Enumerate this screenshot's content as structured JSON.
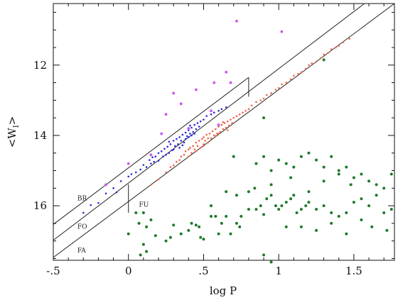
{
  "chart_data": {
    "type": "scatter",
    "title": "",
    "xlabel": "log P",
    "ylabel": "<W",
    "ylabel_subscript": "I",
    "ylabel_close": ">",
    "xlim": [
      -0.5,
      1.77
    ],
    "ylim": [
      17.55,
      10.25
    ],
    "y_inverted": true,
    "grid": false,
    "legend": "none",
    "x_ticks": [
      {
        "value": -0.5,
        "label": "-.5"
      },
      {
        "value": 0,
        "label": "0"
      },
      {
        "value": 0.5,
        "label": ".5"
      },
      {
        "value": 1,
        "label": "1"
      },
      {
        "value": 1.5,
        "label": "1.5"
      }
    ],
    "y_ticks": [
      {
        "value": 12,
        "label": "12"
      },
      {
        "value": 14,
        "label": "14"
      },
      {
        "value": 16,
        "label": "16"
      }
    ],
    "band_labels": [
      {
        "text": "BR",
        "x": -0.34,
        "y": 15.85
      },
      {
        "text": "FO",
        "x": -0.34,
        "y": 16.65
      },
      {
        "text": "FU",
        "x": 0.07,
        "y": 16.03
      },
      {
        "text": "FA",
        "x": -0.34,
        "y": 17.33
      }
    ],
    "boundary_lines": [
      {
        "name": "upper",
        "x": [
          -0.5,
          0.8
        ],
        "y": [
          16.53,
          12.35
        ]
      },
      {
        "name": "middle",
        "x": [
          -0.5,
          1.57
        ],
        "y": [
          16.98,
          10.25
        ]
      },
      {
        "name": "lower",
        "x": [
          -0.5,
          1.77
        ],
        "y": [
          17.47,
          10.25
        ]
      },
      {
        "name": "box-right",
        "x": [
          0.8,
          0.8
        ],
        "y": [
          12.35,
          12.9
        ]
      },
      {
        "name": "box-left",
        "x": [
          0,
          0
        ],
        "y": [
          15.39,
          16.2
        ]
      }
    ],
    "series": [
      {
        "color": "#2b2bd8",
        "marker_size": 1.3,
        "points": [
          [
            -0.25,
            15.98
          ],
          [
            -0.2,
            15.92
          ],
          [
            -0.15,
            15.65
          ],
          [
            -0.1,
            15.5
          ],
          [
            -0.08,
            15.62
          ],
          [
            -0.05,
            15.3
          ],
          [
            0.0,
            15.17
          ],
          [
            0.02,
            15.1
          ],
          [
            0.05,
            15.05
          ],
          [
            0.08,
            14.97
          ],
          [
            0.1,
            14.84
          ],
          [
            0.12,
            14.9
          ],
          [
            0.14,
            14.7
          ],
          [
            0.15,
            14.8
          ],
          [
            0.17,
            14.75
          ],
          [
            0.18,
            14.6
          ],
          [
            0.2,
            14.5
          ],
          [
            0.2,
            14.72
          ],
          [
            0.22,
            14.45
          ],
          [
            0.23,
            14.6
          ],
          [
            0.24,
            14.38
          ],
          [
            0.25,
            14.55
          ],
          [
            0.26,
            14.32
          ],
          [
            0.27,
            14.5
          ],
          [
            0.28,
            14.25
          ],
          [
            0.29,
            14.42
          ],
          [
            0.3,
            14.15
          ],
          [
            0.3,
            14.4
          ],
          [
            0.31,
            14.3
          ],
          [
            0.32,
            14.1
          ],
          [
            0.33,
            14.25
          ],
          [
            0.34,
            14.05
          ],
          [
            0.34,
            14.35
          ],
          [
            0.35,
            14.15
          ],
          [
            0.36,
            13.98
          ],
          [
            0.37,
            14.2
          ],
          [
            0.38,
            13.92
          ],
          [
            0.38,
            14.1
          ],
          [
            0.39,
            14.02
          ],
          [
            0.4,
            13.85
          ],
          [
            0.4,
            14.05
          ],
          [
            0.41,
            13.95
          ],
          [
            0.42,
            13.78
          ],
          [
            0.42,
            14.0
          ],
          [
            0.43,
            13.9
          ],
          [
            0.44,
            13.7
          ],
          [
            0.44,
            13.95
          ],
          [
            0.45,
            13.82
          ],
          [
            0.46,
            13.65
          ],
          [
            0.47,
            13.75
          ],
          [
            0.48,
            13.6
          ],
          [
            0.5,
            13.55
          ],
          [
            0.52,
            13.45
          ],
          [
            0.55,
            13.4
          ],
          [
            0.57,
            13.35
          ],
          [
            0.6,
            13.3
          ],
          [
            0.62,
            13.25
          ],
          [
            0.65,
            13.2
          ],
          [
            -0.3,
            16.2
          ],
          [
            0.16,
            14.62
          ],
          [
            0.27,
            14.18
          ],
          [
            0.36,
            14.28
          ],
          [
            0.41,
            13.72
          ]
        ]
      },
      {
        "color": "#f0654a",
        "marker_size": 1.3,
        "points": [
          [
            0.15,
            15.4
          ],
          [
            0.2,
            15.25
          ],
          [
            0.25,
            15.05
          ],
          [
            0.28,
            14.9
          ],
          [
            0.3,
            14.85
          ],
          [
            0.32,
            14.75
          ],
          [
            0.34,
            14.7
          ],
          [
            0.35,
            14.6
          ],
          [
            0.37,
            14.55
          ],
          [
            0.38,
            14.45
          ],
          [
            0.4,
            14.4
          ],
          [
            0.4,
            14.6
          ],
          [
            0.41,
            14.35
          ],
          [
            0.42,
            14.5
          ],
          [
            0.43,
            14.3
          ],
          [
            0.44,
            14.4
          ],
          [
            0.45,
            14.2
          ],
          [
            0.45,
            14.45
          ],
          [
            0.46,
            14.3
          ],
          [
            0.47,
            14.15
          ],
          [
            0.48,
            14.35
          ],
          [
            0.49,
            14.1
          ],
          [
            0.5,
            14.25
          ],
          [
            0.5,
            14.05
          ],
          [
            0.51,
            14.15
          ],
          [
            0.52,
            13.98
          ],
          [
            0.53,
            14.2
          ],
          [
            0.54,
            13.95
          ],
          [
            0.55,
            14.08
          ],
          [
            0.56,
            13.88
          ],
          [
            0.57,
            14.0
          ],
          [
            0.58,
            13.82
          ],
          [
            0.59,
            13.95
          ],
          [
            0.6,
            13.75
          ],
          [
            0.61,
            13.9
          ],
          [
            0.62,
            13.7
          ],
          [
            0.63,
            13.82
          ],
          [
            0.64,
            13.65
          ],
          [
            0.65,
            13.78
          ],
          [
            0.66,
            13.6
          ],
          [
            0.67,
            13.72
          ],
          [
            0.68,
            13.55
          ],
          [
            0.7,
            13.5
          ],
          [
            0.72,
            13.45
          ],
          [
            0.74,
            13.4
          ],
          [
            0.76,
            13.35
          ],
          [
            0.78,
            13.3
          ],
          [
            0.8,
            13.25
          ],
          [
            0.82,
            13.15
          ],
          [
            0.85,
            13.05
          ],
          [
            0.88,
            13.0
          ],
          [
            0.9,
            12.95
          ],
          [
            0.92,
            12.85
          ],
          [
            0.95,
            12.8
          ],
          [
            0.98,
            12.7
          ],
          [
            1.0,
            12.65
          ],
          [
            1.02,
            12.55
          ],
          [
            1.05,
            12.5
          ],
          [
            1.08,
            12.4
          ],
          [
            1.1,
            12.3
          ],
          [
            1.13,
            12.25
          ],
          [
            1.15,
            12.2
          ],
          [
            1.18,
            12.1
          ],
          [
            1.2,
            12.0
          ],
          [
            1.22,
            11.95
          ],
          [
            1.25,
            11.9
          ],
          [
            1.28,
            11.8
          ],
          [
            1.3,
            11.7
          ],
          [
            1.33,
            11.65
          ],
          [
            1.35,
            11.55
          ],
          [
            1.38,
            11.5
          ],
          [
            1.4,
            11.45
          ],
          [
            1.43,
            11.35
          ],
          [
            1.47,
            11.25
          ],
          [
            0.5,
            14.3
          ],
          [
            0.53,
            14.08
          ],
          [
            0.58,
            14.02
          ],
          [
            0.6,
            13.95
          ],
          [
            0.63,
            13.62
          ],
          [
            0.66,
            13.85
          ],
          [
            0.69,
            13.65
          ]
        ]
      },
      {
        "color": "#cc55ee",
        "marker_size": 1.9,
        "points": [
          [
            -0.15,
            15.4
          ],
          [
            0.0,
            14.8
          ],
          [
            0.15,
            14.55
          ],
          [
            0.22,
            13.95
          ],
          [
            0.25,
            13.4
          ],
          [
            0.3,
            12.8
          ],
          [
            0.35,
            13.1
          ],
          [
            0.4,
            13.8
          ],
          [
            0.45,
            12.7
          ],
          [
            0.55,
            13.3
          ],
          [
            0.57,
            12.5
          ],
          [
            0.6,
            13.7
          ],
          [
            0.65,
            12.2
          ],
          [
            0.68,
            12.5
          ],
          [
            0.72,
            10.75
          ],
          [
            1.02,
            11.05
          ]
        ]
      },
      {
        "color": "#1e7a2a",
        "marker_size": 2.0,
        "points": [
          [
            0.0,
            16.8
          ],
          [
            0.05,
            16.2
          ],
          [
            0.07,
            16.5
          ],
          [
            0.1,
            16.2
          ],
          [
            0.12,
            16.6
          ],
          [
            0.15,
            16.4
          ],
          [
            0.18,
            16.85
          ],
          [
            0.1,
            17.1
          ],
          [
            0.08,
            17.4
          ],
          [
            0.12,
            17.3
          ],
          [
            0.25,
            17.0
          ],
          [
            0.28,
            16.9
          ],
          [
            0.3,
            16.55
          ],
          [
            0.35,
            16.8
          ],
          [
            0.4,
            16.7
          ],
          [
            0.45,
            16.55
          ],
          [
            0.48,
            16.9
          ],
          [
            0.5,
            16.95
          ],
          [
            0.47,
            16.6
          ],
          [
            0.42,
            16.5
          ],
          [
            0.55,
            16.3
          ],
          [
            0.58,
            16.3
          ],
          [
            0.6,
            16.8
          ],
          [
            0.62,
            16.5
          ],
          [
            0.65,
            16.3
          ],
          [
            0.68,
            16.8
          ],
          [
            0.72,
            16.5
          ],
          [
            0.74,
            16.6
          ],
          [
            0.75,
            16.3
          ],
          [
            0.8,
            16.1
          ],
          [
            0.85,
            16.1
          ],
          [
            0.88,
            16.0
          ],
          [
            0.9,
            16.25
          ],
          [
            0.92,
            15.8
          ],
          [
            0.95,
            15.7
          ],
          [
            0.98,
            16.0
          ],
          [
            1.0,
            16.1
          ],
          [
            1.02,
            16.0
          ],
          [
            1.05,
            15.9
          ],
          [
            1.08,
            15.8
          ],
          [
            1.1,
            15.7
          ],
          [
            1.12,
            16.2
          ],
          [
            1.15,
            16.1
          ],
          [
            1.18,
            16.0
          ],
          [
            1.2,
            15.9
          ],
          [
            1.25,
            16.1
          ],
          [
            1.3,
            16.0
          ],
          [
            1.35,
            16.2
          ],
          [
            1.4,
            16.3
          ],
          [
            1.45,
            16.2
          ],
          [
            1.5,
            15.9
          ],
          [
            1.55,
            15.8
          ],
          [
            1.6,
            16.0
          ],
          [
            1.65,
            15.7
          ],
          [
            1.7,
            16.2
          ],
          [
            1.75,
            16.1
          ],
          [
            0.85,
            14.8
          ],
          [
            0.9,
            14.6
          ],
          [
            0.95,
            15.0
          ],
          [
            1.0,
            14.7
          ],
          [
            1.05,
            14.8
          ],
          [
            1.1,
            14.9
          ],
          [
            1.15,
            14.6
          ],
          [
            1.2,
            14.5
          ],
          [
            1.25,
            14.7
          ],
          [
            1.3,
            14.9
          ],
          [
            1.35,
            14.6
          ],
          [
            1.4,
            15.0
          ],
          [
            1.45,
            14.9
          ],
          [
            1.5,
            15.2
          ],
          [
            1.55,
            15.1
          ],
          [
            1.6,
            15.3
          ],
          [
            1.65,
            15.4
          ],
          [
            1.7,
            15.5
          ],
          [
            1.75,
            15.1
          ],
          [
            1.05,
            16.6
          ],
          [
            1.15,
            16.6
          ],
          [
            1.25,
            16.7
          ],
          [
            1.35,
            16.5
          ],
          [
            1.45,
            16.8
          ],
          [
            1.55,
            16.4
          ],
          [
            1.62,
            16.6
          ],
          [
            1.72,
            16.7
          ],
          [
            0.55,
            16.0
          ],
          [
            0.65,
            15.6
          ],
          [
            0.72,
            15.7
          ],
          [
            0.8,
            15.6
          ],
          [
            0.84,
            15.5
          ],
          [
            0.95,
            15.4
          ],
          [
            1.08,
            15.2
          ],
          [
            1.2,
            15.6
          ],
          [
            1.3,
            15.3
          ],
          [
            1.4,
            15.1
          ],
          [
            1.48,
            15.4
          ],
          [
            0.9,
            17.4
          ],
          [
            0.95,
            17.6
          ],
          [
            1.3,
            11.85
          ],
          [
            0.9,
            13.5
          ],
          [
            0.7,
            14.6
          ]
        ]
      }
    ]
  }
}
